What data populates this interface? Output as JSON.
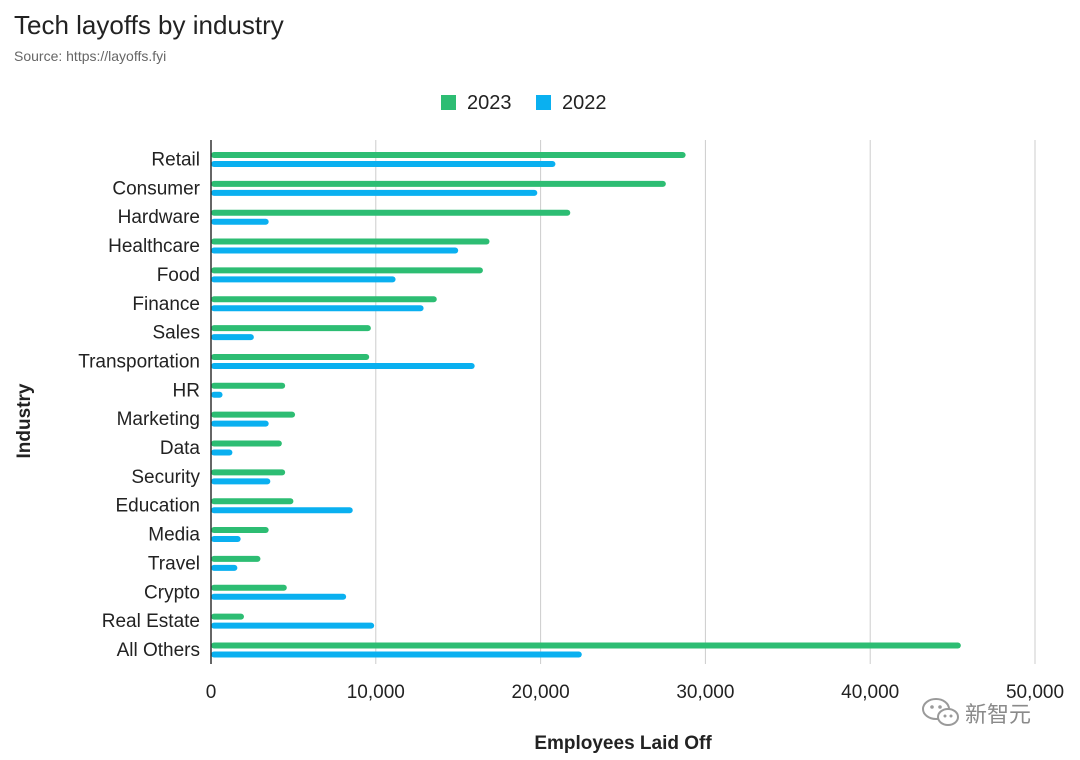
{
  "title": "Tech layoffs by industry",
  "subtitle": "Source: https://layoffs.fyi",
  "colors": {
    "series_2023": "#2dbd73",
    "series_2022": "#0ab0f0",
    "grid": "#cccccc",
    "axis": "#333333"
  },
  "watermark": {
    "text": "新智元"
  },
  "chart_data": {
    "type": "bar",
    "orientation": "horizontal",
    "title": "Tech layoffs by industry",
    "subtitle": "Source: https://layoffs.fyi",
    "xlabel": "Employees Laid Off",
    "ylabel": "Industry",
    "xlim": [
      0,
      50000
    ],
    "xticks": [
      0,
      10000,
      20000,
      30000,
      40000,
      50000
    ],
    "xtick_labels": [
      "0",
      "10,000",
      "20,000",
      "30,000",
      "40,000",
      "50,000"
    ],
    "grid": true,
    "legend_position": "top-center",
    "categories": [
      "Retail",
      "Consumer",
      "Hardware",
      "Healthcare",
      "Food",
      "Finance",
      "Sales",
      "Transportation",
      "HR",
      "Marketing",
      "Data",
      "Security",
      "Education",
      "Media",
      "Travel",
      "Crypto",
      "Real Estate",
      "All Others"
    ],
    "series": [
      {
        "name": "2023",
        "color": "#2dbd73",
        "values": [
          28800,
          27600,
          21800,
          16900,
          16500,
          13700,
          9700,
          9600,
          4500,
          5100,
          4300,
          4500,
          5000,
          3500,
          3000,
          4600,
          2000,
          45500
        ]
      },
      {
        "name": "2022",
        "color": "#0ab0f0",
        "values": [
          20900,
          19800,
          3500,
          15000,
          11200,
          12900,
          2600,
          16000,
          700,
          3500,
          1300,
          3600,
          8600,
          1800,
          1600,
          8200,
          9900,
          22500
        ]
      }
    ]
  }
}
